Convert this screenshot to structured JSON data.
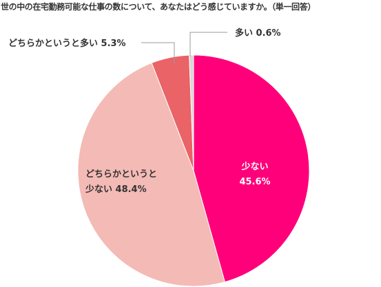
{
  "chart_data": {
    "type": "pie",
    "title": "世の中の在宅勤務可能な仕事の数について、あなたはどう感じていますか。（単一回答）",
    "slices": [
      {
        "label": "少ない",
        "value": 45.6,
        "value_label": "45.6%",
        "color": "#ff007a",
        "label_color": "#ffffff"
      },
      {
        "label": "どちらかというと少ない",
        "value": 48.4,
        "value_label": "48.4%",
        "color": "#f4bab6",
        "label_color": "#333333"
      },
      {
        "label": "どちらかというと多い",
        "value": 5.3,
        "value_label": "5.3%",
        "color": "#e96367",
        "label_color": "#333333"
      },
      {
        "label": "多い",
        "value": 0.6,
        "value_label": "0.6%",
        "color": "#d8d8d8",
        "label_color": "#333333"
      }
    ],
    "start_angle": "12 o'clock",
    "direction": "clockwise"
  },
  "labels": {
    "s0_line1": "少ない",
    "s0_line2": "45.6%",
    "s1_line1": "どちらかというと",
    "s1_line2": "少ない 48.4%",
    "s2": "どちらかというと多い 5.3%",
    "s3": "多い 0.6%"
  }
}
